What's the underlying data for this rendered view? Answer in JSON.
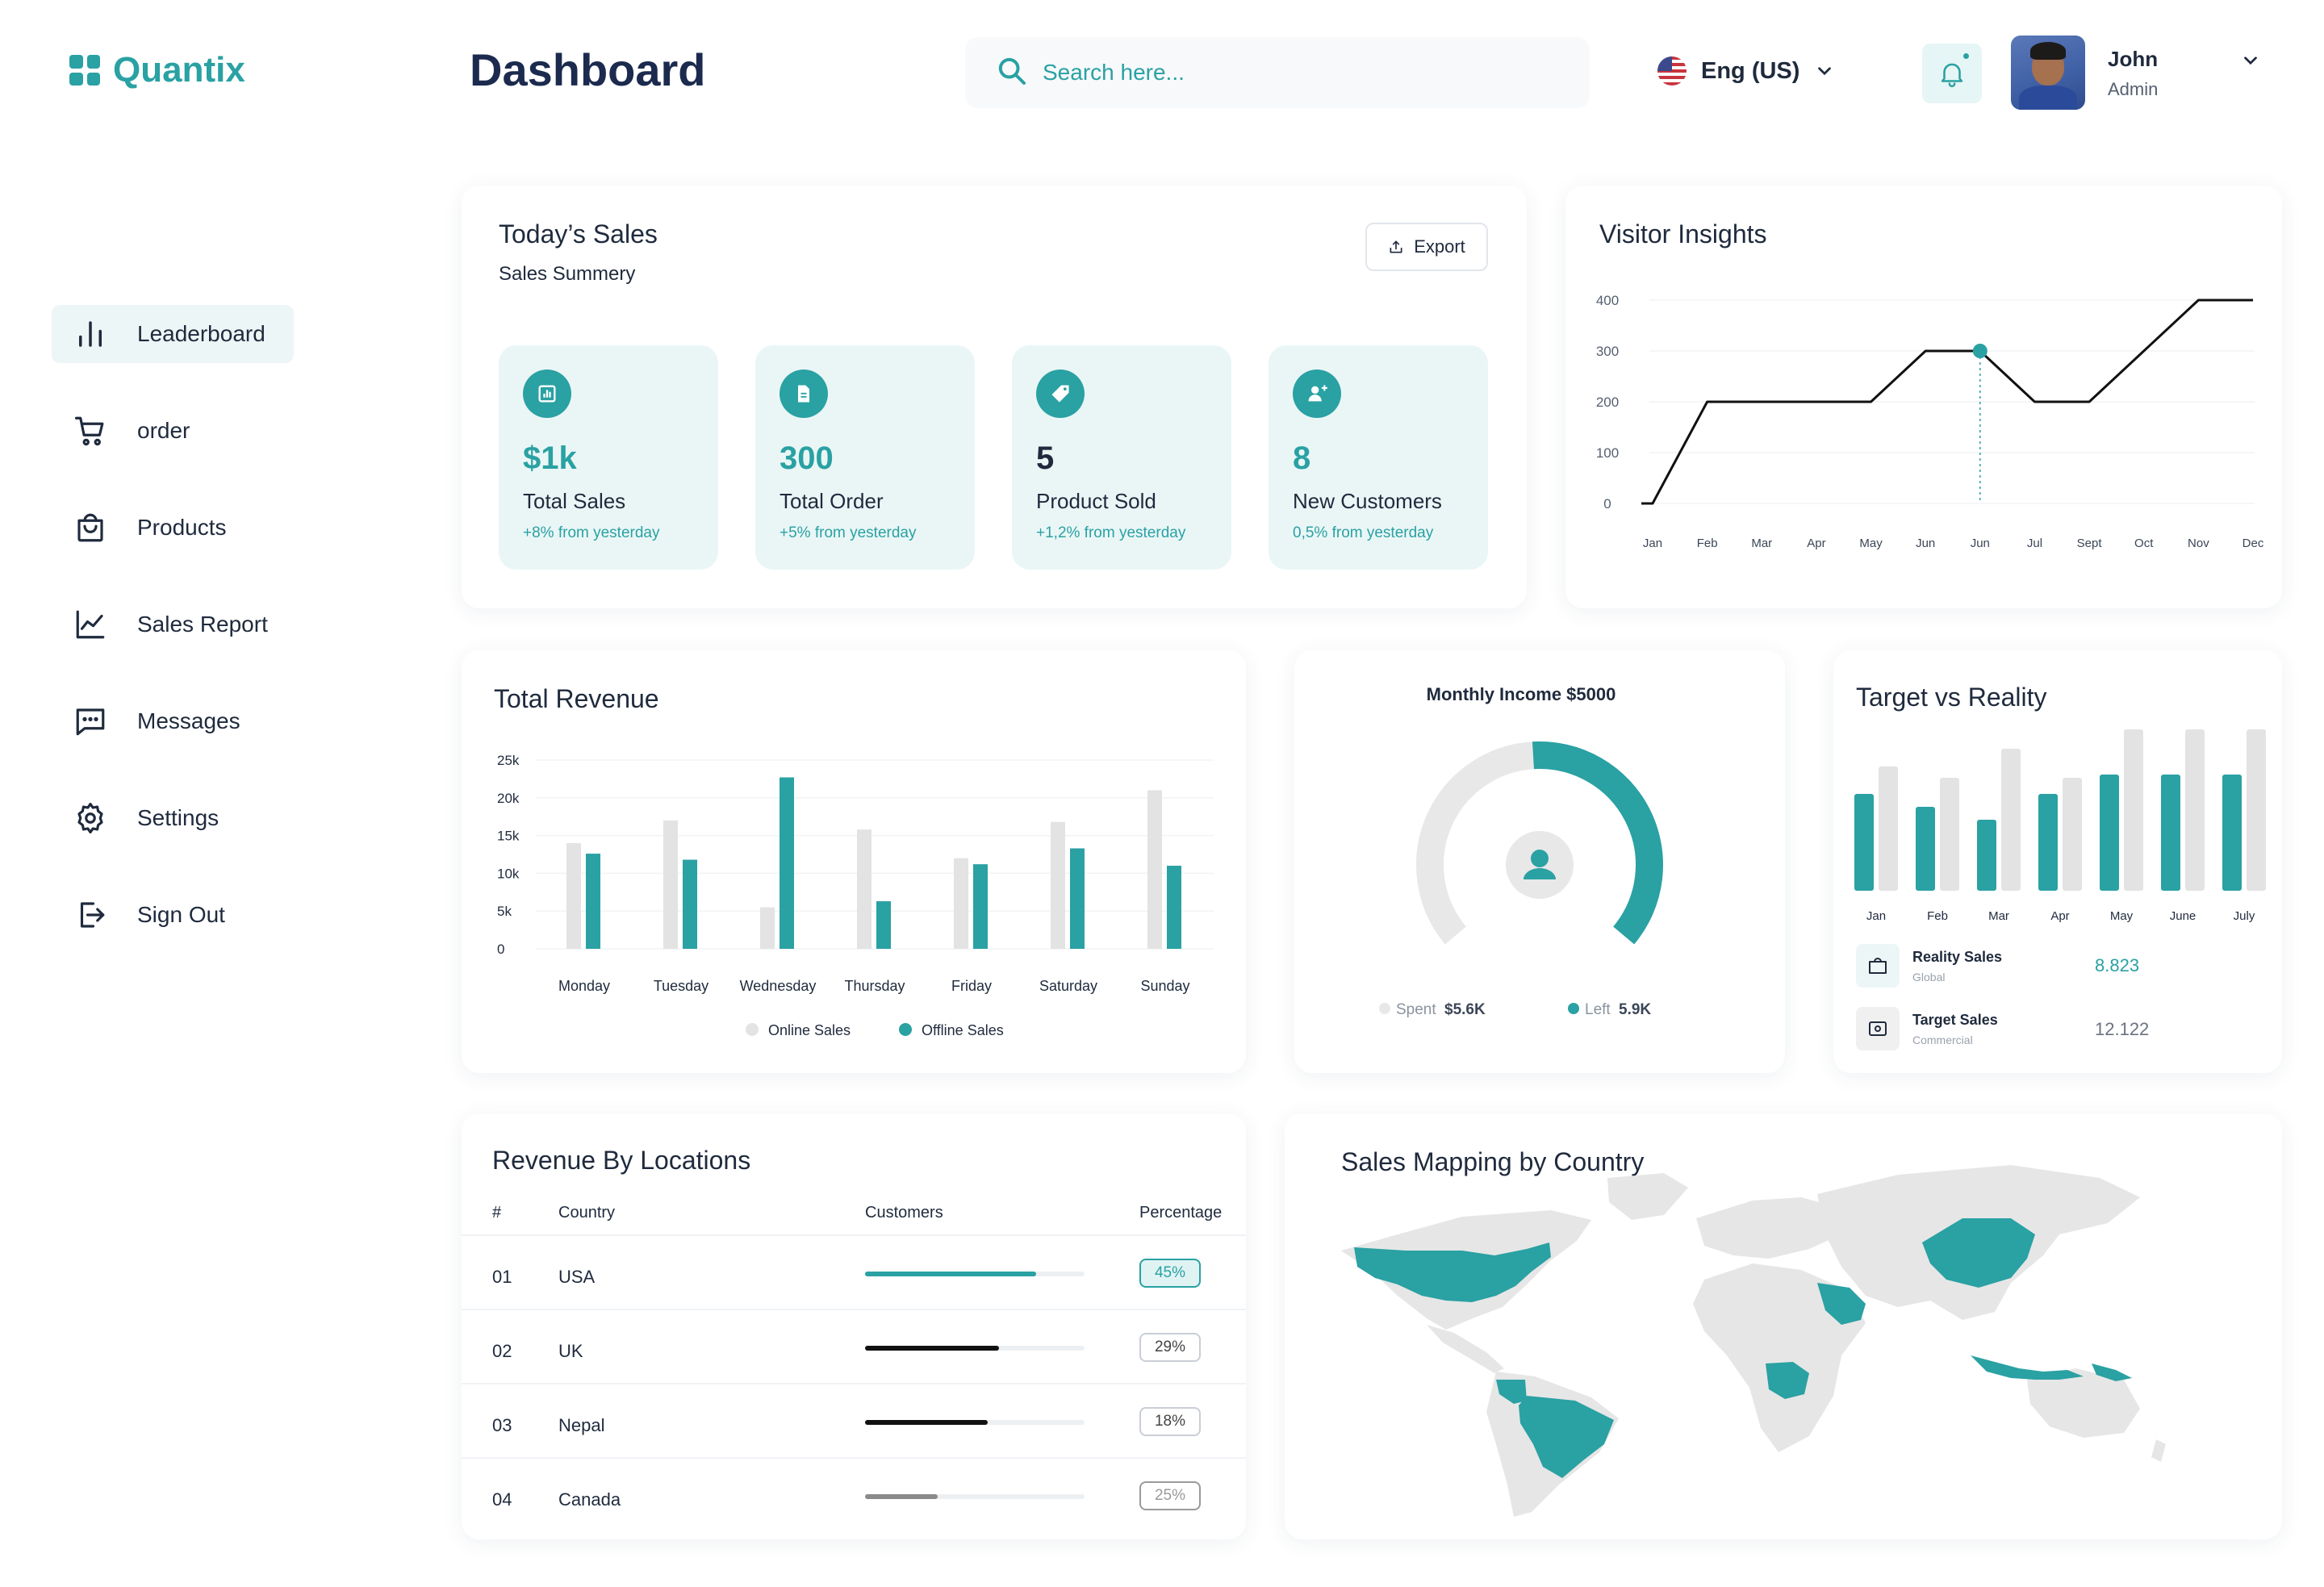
{
  "brand": {
    "name": "Quantix",
    "color": "#2aa1a3"
  },
  "sidebar": {
    "items": [
      {
        "label": "Leaderboard",
        "icon": "bar-chart-icon",
        "active": true
      },
      {
        "label": "order",
        "icon": "cart-icon"
      },
      {
        "label": "Products",
        "icon": "shopping-bag-icon"
      },
      {
        "label": "Sales Report",
        "icon": "line-chart-icon"
      },
      {
        "label": "Messages",
        "icon": "message-icon"
      },
      {
        "label": "Settings",
        "icon": "gear-icon"
      },
      {
        "label": "Sign Out",
        "icon": "sign-out-icon"
      }
    ]
  },
  "header": {
    "title": "Dashboard",
    "search_placeholder": "Search here...",
    "language": "Eng (US)",
    "user": {
      "name": "John",
      "role": "Admin"
    }
  },
  "sales": {
    "title": "Today’s Sales",
    "subtitle": "Sales Summery",
    "export_label": "Export",
    "stats": [
      {
        "value": "$1k",
        "label": "Total Sales",
        "change": "+8% from yesterday",
        "icon": "bar-chart-icon"
      },
      {
        "value": "300",
        "label": "Total Order",
        "change": "+5% from yesterday",
        "icon": "document-icon"
      },
      {
        "value": "5",
        "label": "Product Sold",
        "change": "+1,2% from yesterday",
        "icon": "tag-icon"
      },
      {
        "value": "8",
        "label": "New Customers",
        "change": "0,5% from yesterday",
        "icon": "add-user-icon"
      }
    ]
  },
  "visitor": {
    "title": "Visitor Insights",
    "chart_data": {
      "type": "line",
      "x": [
        "Jan",
        "Feb",
        "Mar",
        "Apr",
        "May",
        "Jun",
        "Jun",
        "Jul",
        "Sept",
        "Oct",
        "Nov",
        "Dec"
      ],
      "y_ticks": [
        400,
        300,
        200,
        100,
        0
      ],
      "ylim": [
        0,
        400
      ],
      "series": [
        {
          "values": [
            0,
            200,
            200,
            200,
            200,
            300,
            300,
            200,
            200,
            300,
            400,
            400
          ],
          "color": "#111111"
        }
      ],
      "highlight_index": 6,
      "grid": true
    }
  },
  "revenue": {
    "title": "Total Revenue",
    "chart_data": {
      "type": "bar",
      "categories": [
        "Monday",
        "Tuesday",
        "Wednesday",
        "Thursday",
        "Friday",
        "Saturday",
        "Sunday"
      ],
      "y_ticks": [
        "25k",
        "20k",
        "15k",
        "10k",
        "5k",
        "0"
      ],
      "ylim": [
        0,
        25000
      ],
      "series": [
        {
          "name": "Online Sales",
          "color": "#e3e3e3",
          "values": [
            14000,
            17000,
            5500,
            15800,
            12000,
            16800,
            21000
          ]
        },
        {
          "name": "Offline Sales",
          "color": "#2aa1a3",
          "values": [
            12600,
            11800,
            22700,
            6300,
            11200,
            13300,
            11000
          ]
        }
      ],
      "legend": "bottom",
      "grid": true
    }
  },
  "income": {
    "title": "Monthly Income $5000",
    "spent_label": "Spent",
    "spent_value": "$5.6K",
    "left_label": "Left",
    "left_value": "5.9K",
    "chart_data": {
      "type": "pie",
      "series": [
        {
          "name": "Spent",
          "value": 5.6,
          "color": "#e8e8e8"
        },
        {
          "name": "Left",
          "value": 5.9,
          "color": "#2aa1a3"
        }
      ]
    }
  },
  "target": {
    "title": "Target vs Reality",
    "chart_data": {
      "type": "bar",
      "categories": [
        "Jan",
        "Feb",
        "Mar",
        "Apr",
        "May",
        "June",
        "July"
      ],
      "series": [
        {
          "name": "Reality Sales",
          "color": "#2aa1a3",
          "values": [
            6.0,
            5.2,
            4.4,
            6.0,
            7.2,
            7.2,
            7.2
          ]
        },
        {
          "name": "Target Sales",
          "color": "#e3e3e3",
          "values": [
            7.7,
            7.0,
            8.8,
            7.0,
            10.0,
            10.0,
            10.0
          ]
        }
      ]
    },
    "rows": [
      {
        "label": "Reality Sales",
        "sub": "Global",
        "value": "8.823",
        "icon": "shopping-bag-icon",
        "value_color": "#2aa1a3"
      },
      {
        "label": "Target Sales",
        "sub": "Commercial",
        "value": "12.122",
        "icon": "ticket-icon",
        "value_color": "#6b7280"
      }
    ]
  },
  "locations": {
    "title": "Revenue By Locations",
    "headers": {
      "num": "#",
      "country": "Country",
      "customers": "Customers",
      "percentage": "Percentage"
    },
    "rows": [
      {
        "num": "01",
        "country": "USA",
        "percent": "45%",
        "fill": 0.78,
        "color": "#2aa1a3",
        "badge_bg": "#e0f3f3",
        "badge_border": "#2aa1a3",
        "badge_text": "#2aa1a3"
      },
      {
        "num": "02",
        "country": "UK",
        "percent": "29%",
        "fill": 0.61,
        "color": "#111111",
        "badge_bg": "#ffffff",
        "badge_border": "#c9ced6",
        "badge_text": "#444444"
      },
      {
        "num": "03",
        "country": "Nepal",
        "percent": "18%",
        "fill": 0.56,
        "color": "#111111",
        "badge_bg": "#ffffff",
        "badge_border": "#c9ced6",
        "badge_text": "#444444"
      },
      {
        "num": "04",
        "country": "Canada",
        "percent": "25%",
        "fill": 0.33,
        "color": "#8a8a8a",
        "badge_bg": "#ffffff",
        "badge_border": "#9a9a9a",
        "badge_text": "#9a9a9a"
      }
    ]
  },
  "map": {
    "title": "Sales Mapping by Country",
    "highlight_color": "#2aa1a3",
    "base_color": "#e6e6e6"
  }
}
